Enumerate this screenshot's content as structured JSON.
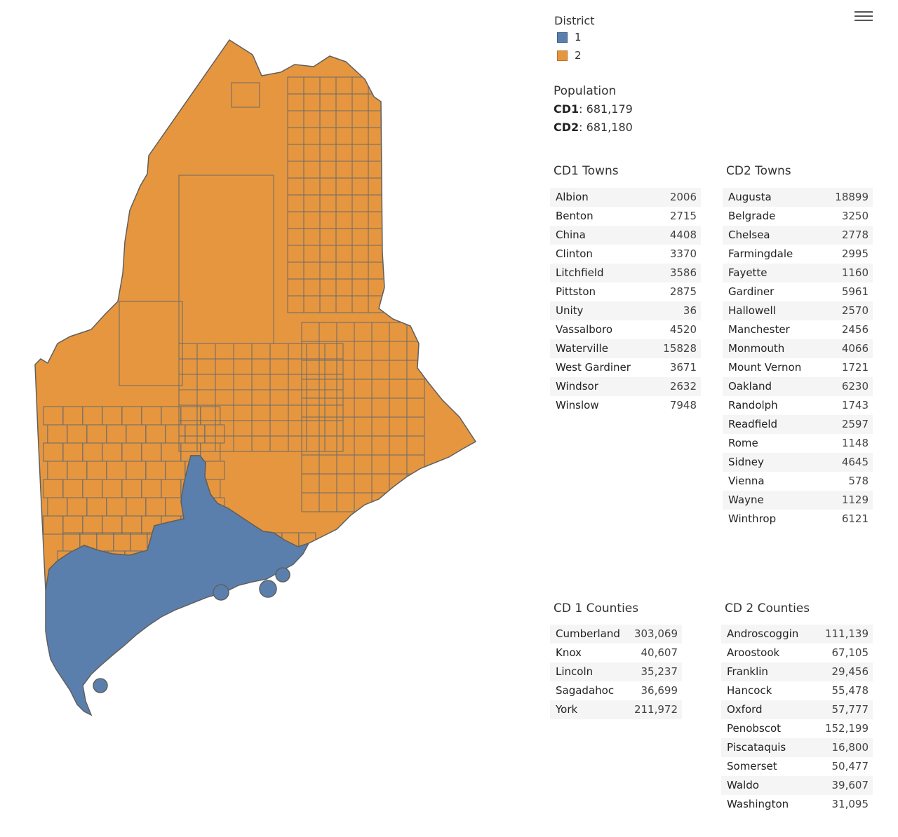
{
  "map": {
    "colors": {
      "district1": "#5b7fad",
      "district2": "#e5963f",
      "border": "#5f5f5f"
    }
  },
  "menu": {
    "icon": "hamburger-menu-icon"
  },
  "legend": {
    "title": "District",
    "items": [
      {
        "label": "1",
        "color": "#5b7fad"
      },
      {
        "label": "2",
        "color": "#e5963f"
      }
    ]
  },
  "population": {
    "title": "Population",
    "cd1_label": "CD1",
    "cd1_value": ": 681,179",
    "cd2_label": "CD2",
    "cd2_value": ": 681,180"
  },
  "cd1_towns": {
    "title": "CD1 Towns",
    "rows": [
      {
        "name": "Albion",
        "value": "2006"
      },
      {
        "name": "Benton",
        "value": "2715"
      },
      {
        "name": "China",
        "value": "4408"
      },
      {
        "name": "Clinton",
        "value": "3370"
      },
      {
        "name": "Litchfield",
        "value": "3586"
      },
      {
        "name": "Pittston",
        "value": "2875"
      },
      {
        "name": "Unity",
        "value": "36"
      },
      {
        "name": "Vassalboro",
        "value": "4520"
      },
      {
        "name": "Waterville",
        "value": "15828"
      },
      {
        "name": "West Gardiner",
        "value": "3671"
      },
      {
        "name": "Windsor",
        "value": "2632"
      },
      {
        "name": "Winslow",
        "value": "7948"
      }
    ]
  },
  "cd2_towns": {
    "title": "CD2 Towns",
    "rows": [
      {
        "name": "Augusta",
        "value": "18899"
      },
      {
        "name": "Belgrade",
        "value": "3250"
      },
      {
        "name": "Chelsea",
        "value": "2778"
      },
      {
        "name": "Farmingdale",
        "value": "2995"
      },
      {
        "name": "Fayette",
        "value": "1160"
      },
      {
        "name": "Gardiner",
        "value": "5961"
      },
      {
        "name": "Hallowell",
        "value": "2570"
      },
      {
        "name": "Manchester",
        "value": "2456"
      },
      {
        "name": "Monmouth",
        "value": "4066"
      },
      {
        "name": "Mount Vernon",
        "value": "1721"
      },
      {
        "name": "Oakland",
        "value": "6230"
      },
      {
        "name": "Randolph",
        "value": "1743"
      },
      {
        "name": "Readfield",
        "value": "2597"
      },
      {
        "name": "Rome",
        "value": "1148"
      },
      {
        "name": "Sidney",
        "value": "4645"
      },
      {
        "name": "Vienna",
        "value": "578"
      },
      {
        "name": "Wayne",
        "value": "1129"
      },
      {
        "name": "Winthrop",
        "value": "6121"
      }
    ]
  },
  "cd1_counties": {
    "title": "CD 1 Counties",
    "rows": [
      {
        "name": "Cumberland",
        "value": "303,069"
      },
      {
        "name": "Knox",
        "value": "40,607"
      },
      {
        "name": "Lincoln",
        "value": "35,237"
      },
      {
        "name": "Sagadahoc",
        "value": "36,699"
      },
      {
        "name": "York",
        "value": "211,972"
      }
    ]
  },
  "cd2_counties": {
    "title": "CD 2 Counties",
    "rows": [
      {
        "name": "Androscoggin",
        "value": "111,139"
      },
      {
        "name": "Aroostook",
        "value": "67,105"
      },
      {
        "name": "Franklin",
        "value": "29,456"
      },
      {
        "name": "Hancock",
        "value": "55,478"
      },
      {
        "name": "Oxford",
        "value": "57,777"
      },
      {
        "name": "Penobscot",
        "value": "152,199"
      },
      {
        "name": "Piscataquis",
        "value": "16,800"
      },
      {
        "name": "Somerset",
        "value": "50,477"
      },
      {
        "name": "Waldo",
        "value": "39,607"
      },
      {
        "name": "Washington",
        "value": "31,095"
      }
    ]
  }
}
